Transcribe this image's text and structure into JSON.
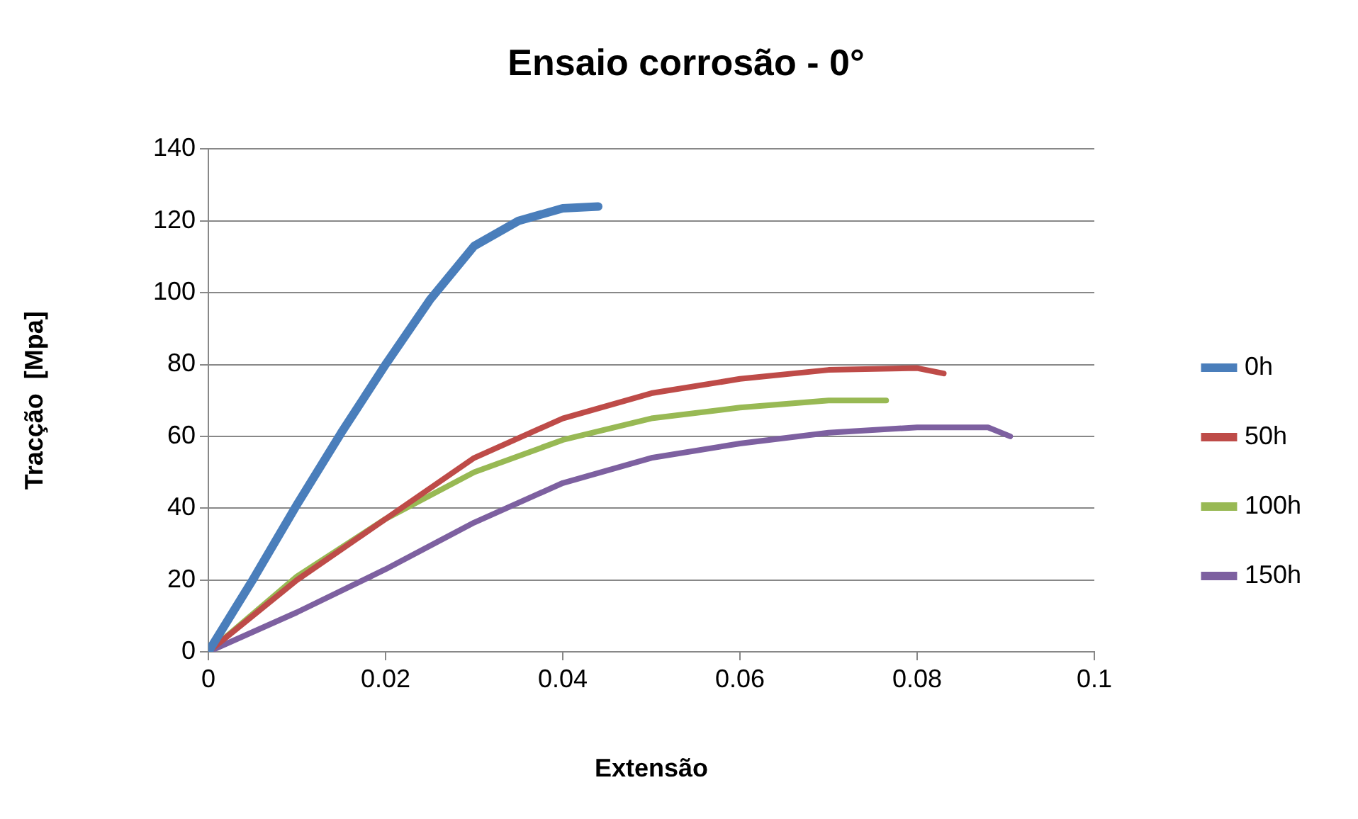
{
  "chart_data": {
    "type": "line",
    "title": "Ensaio corrosão - 0°",
    "xlabel": "Extensão",
    "ylabel": "Tracção  [Mpa]",
    "xlim": [
      0,
      0.1
    ],
    "xticks": [
      0,
      0.02,
      0.04,
      0.06,
      0.08,
      0.1
    ],
    "ylim": [
      0,
      140
    ],
    "yticks": [
      0,
      20,
      40,
      60,
      80,
      100,
      120,
      140
    ],
    "grid": "y",
    "legend": "right",
    "marker": "none",
    "line_style": "solid",
    "series": [
      {
        "name": "0h",
        "color": "#4a7ebb",
        "x": [
          0,
          0.005,
          0.01,
          0.015,
          0.02,
          0.025,
          0.03,
          0.035,
          0.04,
          0.044
        ],
        "values": [
          0,
          20,
          41,
          61,
          80,
          98,
          113,
          120,
          123.5,
          124
        ]
      },
      {
        "name": "50h",
        "color": "#be4b48",
        "x": [
          0,
          0.01,
          0.02,
          0.03,
          0.04,
          0.05,
          0.06,
          0.07,
          0.08,
          0.083
        ],
        "values": [
          0,
          20,
          37,
          54,
          65,
          72,
          76,
          78.5,
          79,
          77.5
        ]
      },
      {
        "name": "100h",
        "color": "#98b954",
        "x": [
          0,
          0.01,
          0.02,
          0.03,
          0.04,
          0.05,
          0.06,
          0.07,
          0.0765
        ],
        "values": [
          0,
          21,
          37,
          50,
          59,
          65,
          68,
          70,
          70
        ]
      },
      {
        "name": "150h",
        "color": "#7d60a0",
        "x": [
          0,
          0.01,
          0.02,
          0.03,
          0.04,
          0.05,
          0.06,
          0.07,
          0.08,
          0.088,
          0.0905
        ],
        "values": [
          0,
          11,
          23,
          36,
          47,
          54,
          58,
          61,
          62.5,
          62.5,
          60
        ]
      }
    ]
  }
}
